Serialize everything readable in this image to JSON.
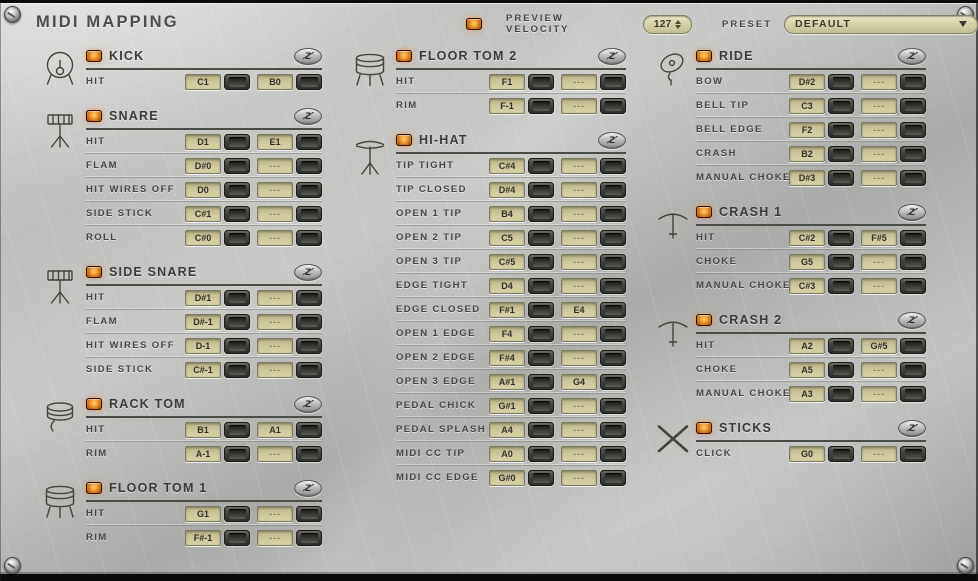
{
  "header": {
    "title": "MIDI MAPPING",
    "preview_velocity_label": "PREVIEW VELOCITY",
    "preview_velocity_value": "127",
    "preset_label": "PRESET",
    "preset_value": "DEFAULT"
  },
  "zone_button_label": "Z",
  "colors": {
    "led_orange": "#f29a30",
    "value_box_bg": "#cfc99d",
    "panel_metal": "#bebebc",
    "text_dark": "#3c3c3a"
  },
  "unassigned_value": "---",
  "columns": [
    [
      {
        "name": "KICK",
        "icon": "kick-drum-icon",
        "rows": [
          {
            "label": "HIT",
            "note1": "C1",
            "note2": "B0"
          }
        ]
      },
      {
        "name": "SNARE",
        "icon": "snare-drum-icon",
        "rows": [
          {
            "label": "HIT",
            "note1": "D1",
            "note2": "E1"
          },
          {
            "label": "FLAM",
            "note1": "D#0",
            "note2": "---"
          },
          {
            "label": "HIT WIRES OFF",
            "note1": "D0",
            "note2": "---"
          },
          {
            "label": "SIDE STICK",
            "note1": "C#1",
            "note2": "---"
          },
          {
            "label": "ROLL",
            "note1": "C#0",
            "note2": "---"
          }
        ]
      },
      {
        "name": "SIDE SNARE",
        "icon": "snare-drum-icon",
        "rows": [
          {
            "label": "HIT",
            "note1": "D#1",
            "note2": "---"
          },
          {
            "label": "FLAM",
            "note1": "D#-1",
            "note2": "---"
          },
          {
            "label": "HIT WIRES OFF",
            "note1": "D-1",
            "note2": "---"
          },
          {
            "label": "SIDE STICK",
            "note1": "C#-1",
            "note2": "---"
          }
        ]
      },
      {
        "name": "RACK TOM",
        "icon": "rack-tom-icon",
        "rows": [
          {
            "label": "HIT",
            "note1": "B1",
            "note2": "A1"
          },
          {
            "label": "RIM",
            "note1": "A-1",
            "note2": "---"
          }
        ]
      },
      {
        "name": "FLOOR TOM 1",
        "icon": "floor-tom-icon",
        "rows": [
          {
            "label": "HIT",
            "note1": "G1",
            "note2": "---"
          },
          {
            "label": "RIM",
            "note1": "F#-1",
            "note2": "---"
          }
        ]
      }
    ],
    [
      {
        "name": "FLOOR TOM 2",
        "icon": "floor-tom-icon",
        "rows": [
          {
            "label": "HIT",
            "note1": "F1",
            "note2": "---"
          },
          {
            "label": "RIM",
            "note1": "F-1",
            "note2": "---"
          }
        ]
      },
      {
        "name": "HI-HAT",
        "icon": "hi-hat-icon",
        "rows": [
          {
            "label": "TIP TIGHT",
            "note1": "C#4",
            "note2": "---"
          },
          {
            "label": "TIP CLOSED",
            "note1": "D#4",
            "note2": "---"
          },
          {
            "label": "OPEN 1 TIP",
            "note1": "B4",
            "note2": "---"
          },
          {
            "label": "OPEN 2 TIP",
            "note1": "C5",
            "note2": "---"
          },
          {
            "label": "OPEN 3 TIP",
            "note1": "C#5",
            "note2": "---"
          },
          {
            "label": "EDGE TIGHT",
            "note1": "D4",
            "note2": "---"
          },
          {
            "label": "EDGE CLOSED",
            "note1": "F#1",
            "note2": "E4"
          },
          {
            "label": "OPEN 1 EDGE",
            "note1": "F4",
            "note2": "---"
          },
          {
            "label": "OPEN 2 EDGE",
            "note1": "F#4",
            "note2": "---"
          },
          {
            "label": "OPEN 3 EDGE",
            "note1": "A#1",
            "note2": "G4"
          },
          {
            "label": "PEDAL CHICK",
            "note1": "G#1",
            "note2": "---"
          },
          {
            "label": "PEDAL SPLASH",
            "note1": "A4",
            "note2": "---"
          },
          {
            "label": "MIDI CC TIP",
            "note1": "A0",
            "note2": "---"
          },
          {
            "label": "MIDI CC EDGE",
            "note1": "G#0",
            "note2": "---"
          }
        ]
      }
    ],
    [
      {
        "name": "RIDE",
        "icon": "ride-cymbal-icon",
        "rows": [
          {
            "label": "BOW",
            "note1": "D#2",
            "note2": "---"
          },
          {
            "label": "BELL TIP",
            "note1": "C3",
            "note2": "---"
          },
          {
            "label": "BELL EDGE",
            "note1": "F2",
            "note2": "---"
          },
          {
            "label": "CRASH",
            "note1": "B2",
            "note2": "---"
          },
          {
            "label": "MANUAL CHOKE",
            "note1": "D#3",
            "note2": "---"
          }
        ]
      },
      {
        "name": "CRASH 1",
        "icon": "crash-cymbal-icon",
        "rows": [
          {
            "label": "HIT",
            "note1": "C#2",
            "note2": "F#5"
          },
          {
            "label": "CHOKE",
            "note1": "G5",
            "note2": "---"
          },
          {
            "label": "MANUAL CHOKE",
            "note1": "C#3",
            "note2": "---"
          }
        ]
      },
      {
        "name": "CRASH 2",
        "icon": "crash-cymbal-icon",
        "rows": [
          {
            "label": "HIT",
            "note1": "A2",
            "note2": "G#5"
          },
          {
            "label": "CHOKE",
            "note1": "A5",
            "note2": "---"
          },
          {
            "label": "MANUAL CHOKE",
            "note1": "A3",
            "note2": "---"
          }
        ]
      },
      {
        "name": "STICKS",
        "icon": "sticks-icon",
        "rows": [
          {
            "label": "CLICK",
            "note1": "G0",
            "note2": "---"
          }
        ]
      }
    ]
  ]
}
